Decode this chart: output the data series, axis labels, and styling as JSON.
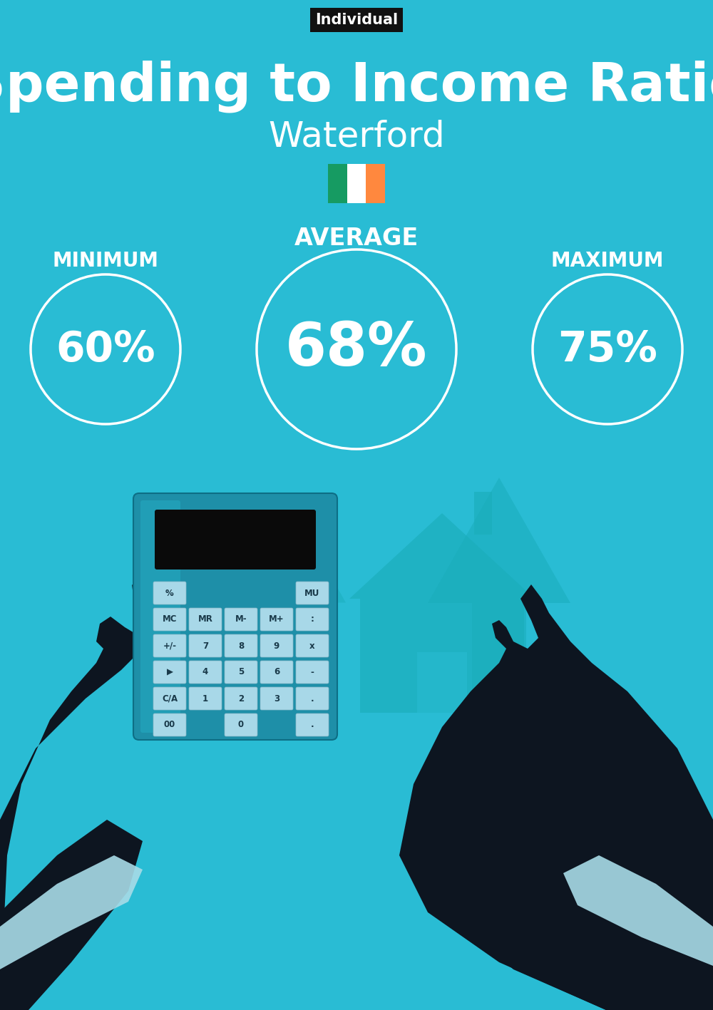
{
  "title": "Spending to Income Ratio",
  "subtitle": "Waterford",
  "tag_label": "Individual",
  "bg_color": "#29BCD4",
  "text_color": "#FFFFFF",
  "tag_bg": "#111111",
  "min_label": "MINIMUM",
  "avg_label": "AVERAGE",
  "max_label": "MAXIMUM",
  "min_value": "60%",
  "avg_value": "68%",
  "max_value": "75%",
  "circle_color": "#FFFFFF",
  "circle_lw": 2.5,
  "flag_colors": [
    "#169B62",
    "#FFFFFF",
    "#FF883E"
  ],
  "arrow_color": "#1AADBB",
  "dark_color": "#0d1b2a",
  "calc_body_color": "#1E8FA8",
  "calc_screen_color": "#0a0a0a",
  "btn_color": "#A8D8E8",
  "btn_text_color": "#1a3a4a",
  "house_color": "#1AADBB",
  "hand_color": "#0d1520",
  "sleeve_color": "#A8DCE8",
  "bag_color": "#1AADBB",
  "money_color": "#C8E8C0"
}
